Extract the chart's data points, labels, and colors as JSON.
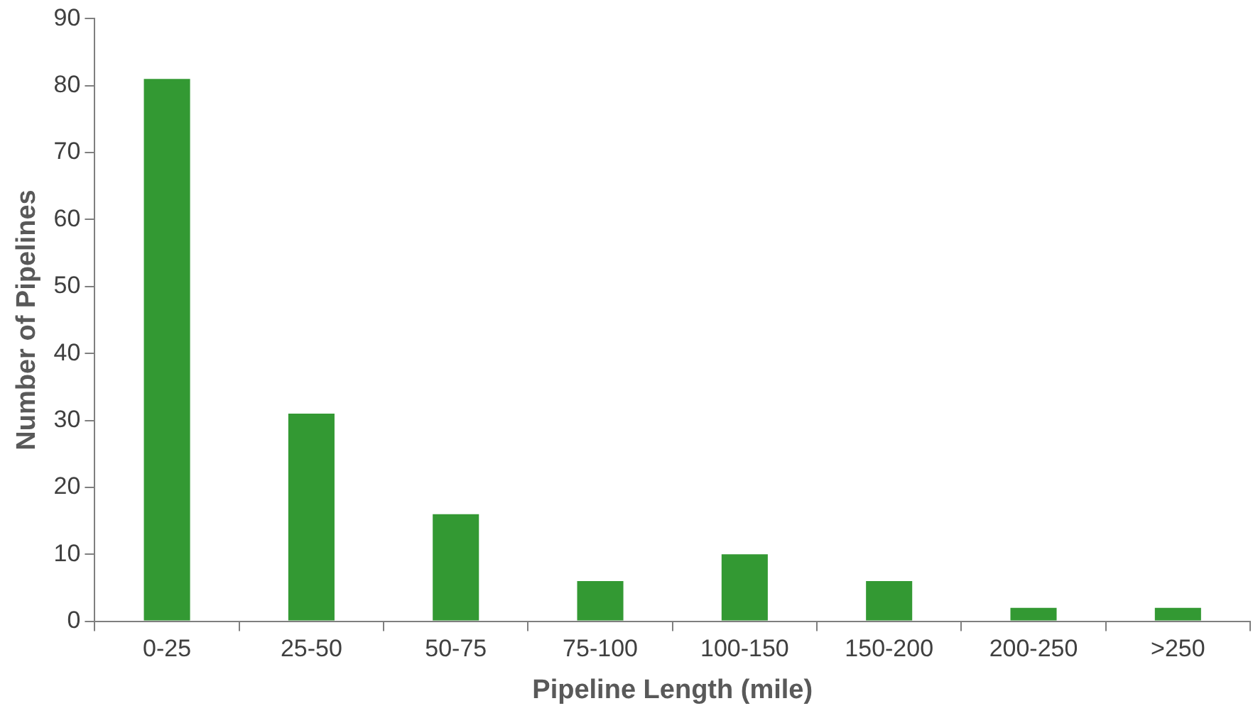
{
  "chart_data": {
    "type": "bar",
    "xlabel": "Pipeline Length (mile)",
    "ylabel": "Number of Pipelines",
    "categories": [
      "0-25",
      "25-50",
      "50-75",
      "75-100",
      "100-150",
      "150-200",
      "200-250",
      ">250"
    ],
    "values": [
      81,
      31,
      16,
      6,
      10,
      6,
      2,
      2
    ],
    "color": "#339933",
    "ylim": [
      0,
      90
    ],
    "yticks": [
      0,
      10,
      20,
      30,
      40,
      50,
      60,
      70,
      80,
      90
    ],
    "grid": false,
    "legend": false
  }
}
